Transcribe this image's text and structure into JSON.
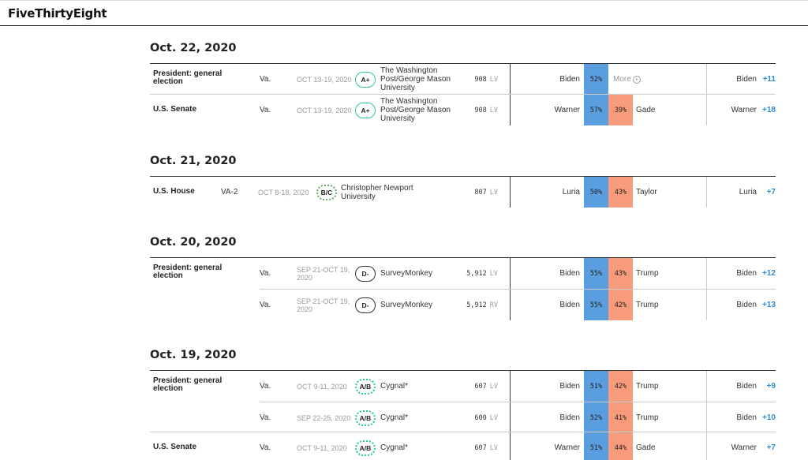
{
  "brand": {
    "logo": "FiveThirtyEight"
  },
  "sections": [
    {
      "date": "Oct. 22, 2020",
      "groups": [
        {
          "race": "President: general election",
          "rows": [
            {
              "state": "Va.",
              "dates": "OCT 13-19, 2020",
              "grade": "A+",
              "pollster": "The Washington Post/George Mason University",
              "sample": "908",
              "pop": "LV",
              "cand1": "Biden",
              "pct1": "52%",
              "cand2": "",
              "pct2": "",
              "more": "More",
              "net_name": "Biden",
              "net_val": "+11"
            }
          ]
        },
        {
          "race": "U.S. Senate",
          "rows": [
            {
              "state": "Va.",
              "dates": "OCT 13-19, 2020",
              "grade": "A+",
              "pollster": "The Washington Post/George Mason University",
              "sample": "908",
              "pop": "LV",
              "cand1": "Warner",
              "pct1": "57%",
              "cand2": "Gade",
              "pct2": "39%",
              "net_name": "Warner",
              "net_val": "+18"
            }
          ]
        }
      ]
    },
    {
      "date": "Oct. 21, 2020",
      "groups": [
        {
          "race": "U.S. House",
          "rows": [
            {
              "state": "VA-2",
              "dates": "OCT 8-18, 2020",
              "grade": "B/C",
              "pollster": "Christopher Newport University",
              "sample": "807",
              "pop": "LV",
              "cand1": "Luria",
              "pct1": "50%",
              "cand2": "Taylor",
              "pct2": "43%",
              "net_name": "Luria",
              "net_val": "+7"
            }
          ]
        }
      ]
    },
    {
      "date": "Oct. 20, 2020",
      "groups": [
        {
          "race": "President: general election",
          "rows": [
            {
              "state": "Va.",
              "dates": "SEP 21-OCT 19, 2020",
              "grade": "D-",
              "pollster": "SurveyMonkey",
              "sample": "5,912",
              "pop": "LV",
              "cand1": "Biden",
              "pct1": "55%",
              "cand2": "Trump",
              "pct2": "43%",
              "net_name": "Biden",
              "net_val": "+12"
            },
            {
              "state": "Va.",
              "dates": "SEP 21-OCT 19, 2020",
              "grade": "D-",
              "pollster": "SurveyMonkey",
              "sample": "5,912",
              "pop": "RV",
              "cand1": "Biden",
              "pct1": "55%",
              "cand2": "Trump",
              "pct2": "42%",
              "net_name": "Biden",
              "net_val": "+13"
            }
          ]
        }
      ]
    },
    {
      "date": "Oct. 19, 2020",
      "groups": [
        {
          "race": "President: general election",
          "rows": [
            {
              "state": "Va.",
              "dates": "OCT 9-11, 2020",
              "grade": "A/B",
              "pollster": "Cygnal*",
              "sample": "607",
              "pop": "LV",
              "cand1": "Biden",
              "pct1": "51%",
              "cand2": "Trump",
              "pct2": "42%",
              "net_name": "Biden",
              "net_val": "+9"
            },
            {
              "state": "Va.",
              "dates": "SEP 22-25, 2020",
              "grade": "A/B",
              "pollster": "Cygnal*",
              "sample": "600",
              "pop": "LV",
              "cand1": "Biden",
              "pct1": "52%",
              "cand2": "Trump",
              "pct2": "41%",
              "net_name": "Biden",
              "net_val": "+10"
            }
          ]
        },
        {
          "race": "U.S. Senate",
          "rows": [
            {
              "state": "Va.",
              "dates": "OCT 9-11, 2020",
              "grade": "A/B",
              "pollster": "Cygnal*",
              "sample": "607",
              "pop": "LV",
              "cand1": "Warner",
              "pct1": "51%",
              "cand2": "Gade",
              "pct2": "44%",
              "net_name": "Warner",
              "net_val": "+7"
            }
          ]
        }
      ]
    }
  ]
}
